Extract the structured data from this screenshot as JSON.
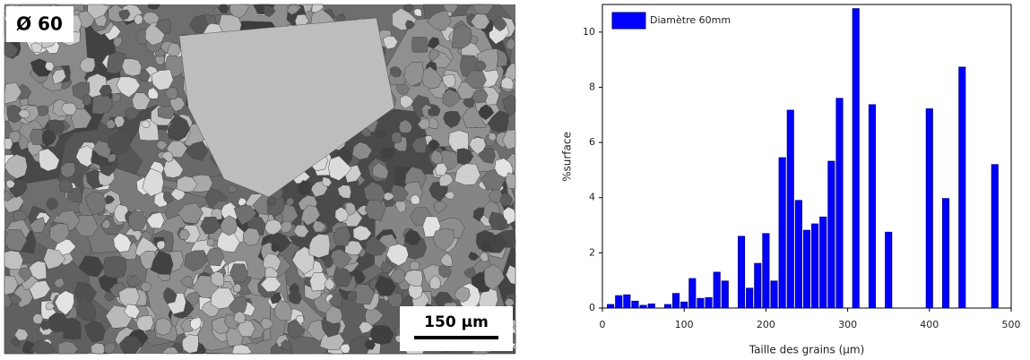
{
  "image": {
    "label": "Ø 60",
    "scale_bar": "150 µm"
  },
  "chart_data": {
    "type": "bar",
    "x": [
      10,
      20,
      30,
      40,
      50,
      60,
      80,
      90,
      100,
      110,
      120,
      130,
      140,
      150,
      170,
      180,
      190,
      200,
      210,
      220,
      230,
      240,
      250,
      260,
      270,
      280,
      290,
      310,
      330,
      350,
      400,
      420,
      440,
      480
    ],
    "series": [
      {
        "name": "Diamètre 60mm",
        "color": "#0000ff",
        "values": [
          0.13,
          0.45,
          0.48,
          0.25,
          0.1,
          0.15,
          0.13,
          0.53,
          0.22,
          1.07,
          0.35,
          0.38,
          1.3,
          0.98,
          2.6,
          0.72,
          1.62,
          2.7,
          0.98,
          5.45,
          7.17,
          3.9,
          2.82,
          3.05,
          3.3,
          5.32,
          7.6,
          10.85,
          7.37,
          2.75,
          7.22,
          3.97,
          8.73,
          5.2
        ]
      }
    ],
    "xlabel": "Taille des grains (µm)",
    "ylabel": "%surface",
    "xlim": [
      0,
      500
    ],
    "ylim": [
      0,
      11
    ],
    "xticks": [
      0,
      100,
      200,
      300,
      400,
      500
    ],
    "yticks": [
      0,
      2,
      4,
      6,
      8,
      10
    ],
    "legend": "upper left"
  }
}
